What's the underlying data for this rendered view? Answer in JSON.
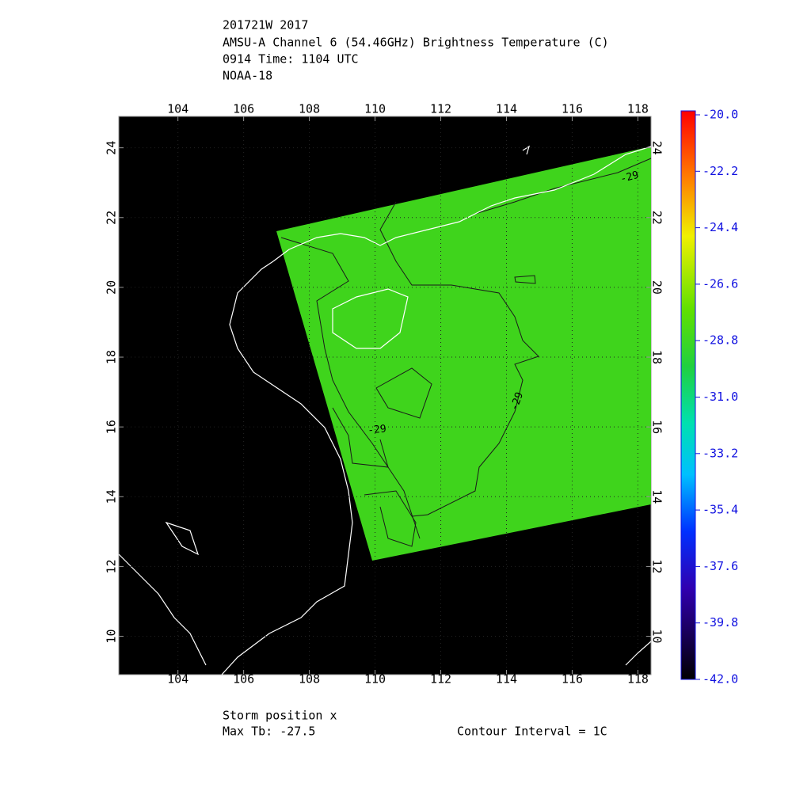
{
  "header": {
    "lines": [
      "201721W 2017",
      "AMSU-A Channel 6 (54.46GHz) Brightness Temperature (C)",
      "0914 Time: 1104 UTC",
      "NOAA-18"
    ]
  },
  "map": {
    "lon_range": [
      102.2,
      118.4
    ],
    "lat_range": [
      8.9,
      24.9
    ],
    "lon_ticks": [
      104,
      106,
      108,
      110,
      112,
      114,
      116,
      118
    ],
    "lat_ticks": [
      24,
      22,
      20,
      18,
      16,
      14,
      12,
      10
    ],
    "grid": true,
    "swath_color": "#3fd41c",
    "contour_labels": [
      -29,
      -29,
      -29
    ]
  },
  "colorbar": {
    "range": [
      -42,
      -20
    ],
    "ticks": [
      {
        "value": -20,
        "label": "-20.0"
      },
      {
        "value": -22.2,
        "label": "-22.2"
      },
      {
        "value": -24.4,
        "label": "-24.4"
      },
      {
        "value": -26.6,
        "label": "-26.6"
      },
      {
        "value": -28.8,
        "label": "-28.8"
      },
      {
        "value": -31,
        "label": "-31.0"
      },
      {
        "value": -33.2,
        "label": "-33.2"
      },
      {
        "value": -35.4,
        "label": "-35.4"
      },
      {
        "value": -37.6,
        "label": "-37.6"
      },
      {
        "value": -39.8,
        "label": "-39.8"
      },
      {
        "value": -42,
        "label": "-42.0"
      }
    ]
  },
  "footer": {
    "storm_position": "Storm position x",
    "max_tb": "Max Tb: -27.5",
    "contour_interval": "Contour Interval = 1C"
  }
}
